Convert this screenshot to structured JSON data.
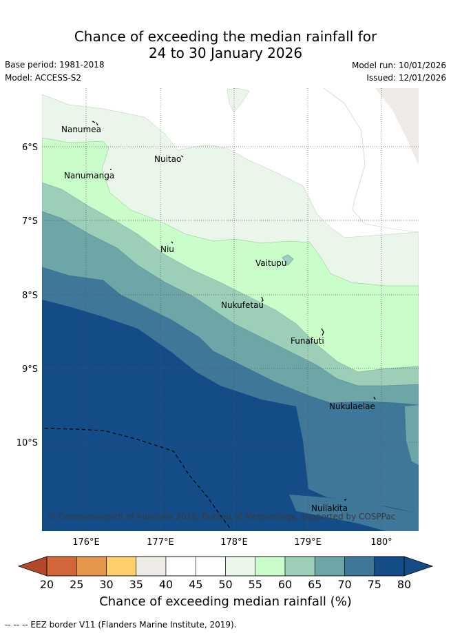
{
  "header": {
    "title_line1": "Chance of exceeding the median rainfall for",
    "title_line2": "24 to 30 January 2026",
    "base_period": "Base period: 1981-2018",
    "model": "Model: ACCESS-S2",
    "model_run": "Model run: 10/01/2026",
    "issued": "Issued: 12/01/2026"
  },
  "map": {
    "lat_labels": [
      "6°S",
      "7°S",
      "8°S",
      "9°S",
      "10°S"
    ],
    "lon_labels": [
      "176°E",
      "177°E",
      "178°E",
      "179°E",
      "180°"
    ],
    "places": [
      "Nanumea",
      "Nuitao",
      "Nanumanga",
      "Niu",
      "Vaitupu",
      "Nukufetau",
      "Funafuti",
      "Nukulaelae",
      "Nuilakita"
    ],
    "copyright": "© Commonwealth of Australia 2026, Bureau of Meteorology, supported by COSPPac"
  },
  "colorbar": {
    "ticks": [
      "20",
      "25",
      "30",
      "35",
      "40",
      "45",
      "50",
      "55",
      "60",
      "65",
      "70",
      "75",
      "80"
    ],
    "colors": [
      "#b5482a",
      "#d0663a",
      "#e4964c",
      "#fccf6a",
      "#eeebe6",
      "#ffffff",
      "#ffffff",
      "#ebf6ea",
      "#c9fdc9",
      "#9ccfb8",
      "#6ea6a8",
      "#3f7799",
      "#134c86"
    ],
    "label": "Chance of exceeding median rainfall (%)"
  },
  "footer": {
    "eez_note": "-- -- -- EEZ border V11 (Flanders Marine Institute, 2019)."
  }
}
